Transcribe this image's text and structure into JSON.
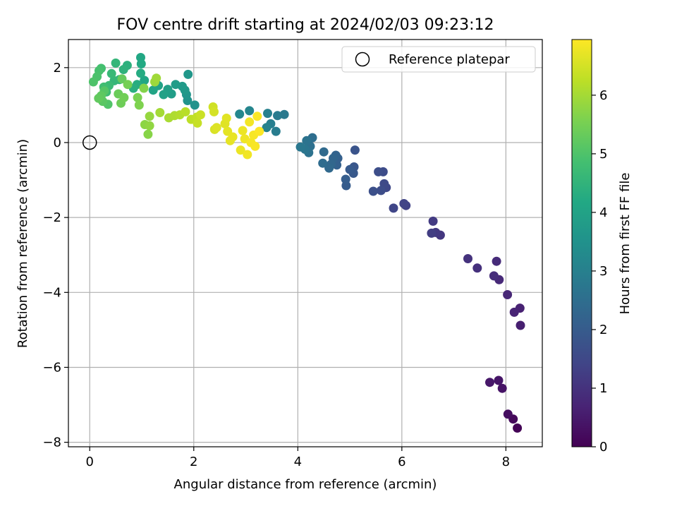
{
  "chart_data": {
    "type": "scatter",
    "title": "FOV centre drift starting at 2024/02/03 09:23:12",
    "xlabel": "Angular distance from reference (arcmin)",
    "ylabel": "Rotation from reference (arcmin)",
    "xlim": [
      -0.41,
      8.7
    ],
    "ylim": [
      -8.12,
      2.75
    ],
    "xticks": [
      0,
      2,
      4,
      6,
      8
    ],
    "yticks": [
      -8,
      -6,
      -4,
      -2,
      0,
      2
    ],
    "xtick_labels": [
      "0",
      "2",
      "4",
      "6",
      "8"
    ],
    "ytick_labels": [
      "−8",
      "−6",
      "−4",
      "−2",
      "0",
      "2"
    ],
    "grid": true,
    "legend": {
      "position": "top-right",
      "entries": [
        "Reference platepar"
      ]
    },
    "reference_point": {
      "x": 0,
      "y": 0,
      "label": "Reference platepar"
    },
    "colorbar": {
      "label": "Hours from first FF file",
      "colormap": "viridis",
      "range": [
        0,
        6.95
      ],
      "ticks": [
        0,
        1,
        2,
        3,
        4,
        5,
        6
      ],
      "tick_labels": [
        "0",
        "1",
        "2",
        "3",
        "4",
        "5",
        "6"
      ]
    },
    "series": [
      {
        "points": [
          [
            8.22,
            -7.62,
            0.05
          ],
          [
            8.14,
            -7.38,
            0.15
          ],
          [
            8.04,
            -7.25,
            0.25
          ],
          [
            7.93,
            -6.56,
            0.35
          ],
          [
            7.86,
            -6.35,
            0.4
          ],
          [
            7.69,
            -6.4,
            0.45
          ],
          [
            8.28,
            -4.88,
            0.6
          ],
          [
            8.27,
            -4.42,
            0.65
          ],
          [
            8.16,
            -4.53,
            0.7
          ],
          [
            8.03,
            -4.06,
            0.75
          ],
          [
            7.87,
            -3.66,
            0.8
          ],
          [
            7.82,
            -3.17,
            0.85
          ],
          [
            7.77,
            -3.56,
            0.9
          ],
          [
            7.45,
            -3.35,
            0.95
          ],
          [
            7.27,
            -3.1,
            1.0
          ],
          [
            6.74,
            -2.47,
            1.1
          ],
          [
            6.65,
            -2.4,
            1.15
          ],
          [
            6.6,
            -2.1,
            1.2
          ],
          [
            6.57,
            -2.42,
            1.25
          ],
          [
            6.08,
            -1.68,
            1.35
          ],
          [
            6.04,
            -1.63,
            1.4
          ],
          [
            5.84,
            -1.75,
            1.45
          ],
          [
            5.7,
            -1.2,
            1.5
          ],
          [
            5.66,
            -1.1,
            1.55
          ],
          [
            5.64,
            -0.78,
            1.6
          ],
          [
            5.6,
            -1.28,
            1.62
          ],
          [
            5.55,
            -0.78,
            1.65
          ],
          [
            5.45,
            -1.3,
            1.7
          ],
          [
            5.1,
            -0.2,
            1.8
          ],
          [
            5.08,
            -0.65,
            1.85
          ],
          [
            5.07,
            -0.82,
            1.9
          ],
          [
            5.0,
            -0.72,
            1.95
          ],
          [
            4.93,
            -1.15,
            2.0
          ],
          [
            4.92,
            -0.98,
            2.05
          ],
          [
            4.77,
            -0.42,
            2.1
          ],
          [
            4.75,
            -0.6,
            2.15
          ],
          [
            4.73,
            -0.34,
            2.2
          ],
          [
            4.68,
            -0.42,
            2.25
          ],
          [
            4.64,
            -0.58,
            2.3
          ],
          [
            4.6,
            -0.68,
            2.35
          ],
          [
            4.5,
            -0.25,
            2.4
          ],
          [
            4.48,
            -0.55,
            2.45
          ],
          [
            4.28,
            0.13,
            2.5
          ],
          [
            4.24,
            -0.1,
            2.55
          ],
          [
            4.21,
            -0.27,
            2.6
          ],
          [
            4.17,
            0.05,
            2.65
          ],
          [
            4.14,
            -0.18,
            2.7
          ],
          [
            4.05,
            -0.12,
            2.75
          ],
          [
            3.74,
            0.75,
            2.8
          ],
          [
            3.61,
            0.72,
            2.85
          ],
          [
            3.58,
            0.3,
            2.9
          ],
          [
            3.48,
            0.5,
            2.95
          ],
          [
            3.42,
            0.78,
            3.0
          ],
          [
            3.4,
            0.4,
            3.05
          ],
          [
            3.07,
            0.85,
            3.15
          ],
          [
            2.88,
            0.76,
            3.2
          ],
          [
            2.02,
            1.0,
            3.5
          ],
          [
            1.88,
            1.12,
            3.55
          ],
          [
            1.86,
            1.28,
            3.6
          ],
          [
            1.89,
            1.82,
            3.65
          ],
          [
            1.83,
            1.4,
            3.7
          ],
          [
            1.78,
            1.5,
            3.75
          ],
          [
            1.65,
            1.55,
            3.8
          ],
          [
            1.57,
            1.3,
            3.85
          ],
          [
            1.5,
            1.42,
            3.9
          ],
          [
            1.42,
            1.28,
            3.95
          ],
          [
            1.32,
            1.52,
            4.0
          ],
          [
            1.22,
            1.4,
            4.05
          ],
          [
            1.05,
            1.66,
            4.1
          ],
          [
            0.98,
            2.27,
            4.15
          ],
          [
            0.99,
            2.1,
            4.2
          ],
          [
            0.98,
            1.85,
            4.25
          ],
          [
            0.91,
            1.55,
            4.3
          ],
          [
            0.84,
            1.45,
            4.35
          ],
          [
            0.72,
            2.06,
            4.4
          ],
          [
            0.65,
            1.95,
            4.45
          ],
          [
            0.57,
            1.68,
            4.5
          ],
          [
            0.5,
            2.12,
            4.55
          ],
          [
            0.47,
            1.65,
            4.6
          ],
          [
            0.42,
            1.84,
            4.65
          ],
          [
            0.37,
            1.52,
            4.7
          ],
          [
            0.32,
            1.35,
            4.75
          ],
          [
            0.27,
            1.48,
            4.8
          ],
          [
            0.22,
            1.98,
            4.85
          ],
          [
            0.18,
            1.92,
            4.9
          ],
          [
            0.14,
            1.76,
            4.95
          ],
          [
            0.07,
            1.62,
            5.0
          ],
          [
            0.35,
            1.02,
            5.05
          ],
          [
            0.28,
            1.38,
            5.1
          ],
          [
            0.25,
            1.1,
            5.15
          ],
          [
            0.22,
            1.25,
            5.2
          ],
          [
            0.17,
            1.18,
            5.25
          ],
          [
            0.62,
            1.7,
            5.3
          ],
          [
            0.55,
            1.3,
            5.35
          ],
          [
            0.6,
            1.05,
            5.4
          ],
          [
            0.66,
            1.2,
            5.45
          ],
          [
            0.73,
            1.55,
            5.5
          ],
          [
            0.92,
            1.2,
            5.55
          ],
          [
            0.95,
            1.0,
            5.6
          ],
          [
            1.04,
            1.45,
            5.65
          ],
          [
            1.12,
            0.22,
            5.7
          ],
          [
            1.06,
            0.48,
            5.75
          ],
          [
            1.15,
            0.45,
            5.8
          ],
          [
            1.15,
            0.7,
            5.85
          ],
          [
            1.25,
            1.62,
            5.9
          ],
          [
            1.28,
            1.72,
            5.95
          ],
          [
            1.35,
            0.8,
            6.0
          ],
          [
            1.52,
            0.66,
            6.05
          ],
          [
            1.63,
            0.72,
            6.1
          ],
          [
            1.73,
            0.74,
            6.15
          ],
          [
            1.84,
            0.82,
            6.2
          ],
          [
            1.95,
            0.62,
            6.25
          ],
          [
            2.06,
            0.68,
            6.3
          ],
          [
            2.07,
            0.52,
            6.35
          ],
          [
            2.13,
            0.74,
            6.4
          ],
          [
            2.37,
            0.95,
            6.45
          ],
          [
            2.39,
            0.82,
            6.5
          ],
          [
            2.4,
            0.35,
            6.55
          ],
          [
            2.44,
            0.4,
            6.6
          ],
          [
            2.6,
            0.5,
            6.62
          ],
          [
            2.63,
            0.65,
            6.65
          ],
          [
            2.65,
            0.3,
            6.68
          ],
          [
            2.7,
            0.05,
            6.7
          ],
          [
            2.75,
            0.15,
            6.72
          ],
          [
            2.9,
            -0.2,
            6.75
          ],
          [
            2.94,
            0.32,
            6.77
          ],
          [
            2.98,
            0.1,
            6.8
          ],
          [
            3.03,
            -0.32,
            6.82
          ],
          [
            3.07,
            0.55,
            6.84
          ],
          [
            3.1,
            0.0,
            6.86
          ],
          [
            3.15,
            0.2,
            6.88
          ],
          [
            3.18,
            -0.1,
            6.9
          ],
          [
            3.22,
            0.7,
            6.92
          ],
          [
            3.26,
            0.3,
            6.94
          ]
        ]
      }
    ]
  }
}
